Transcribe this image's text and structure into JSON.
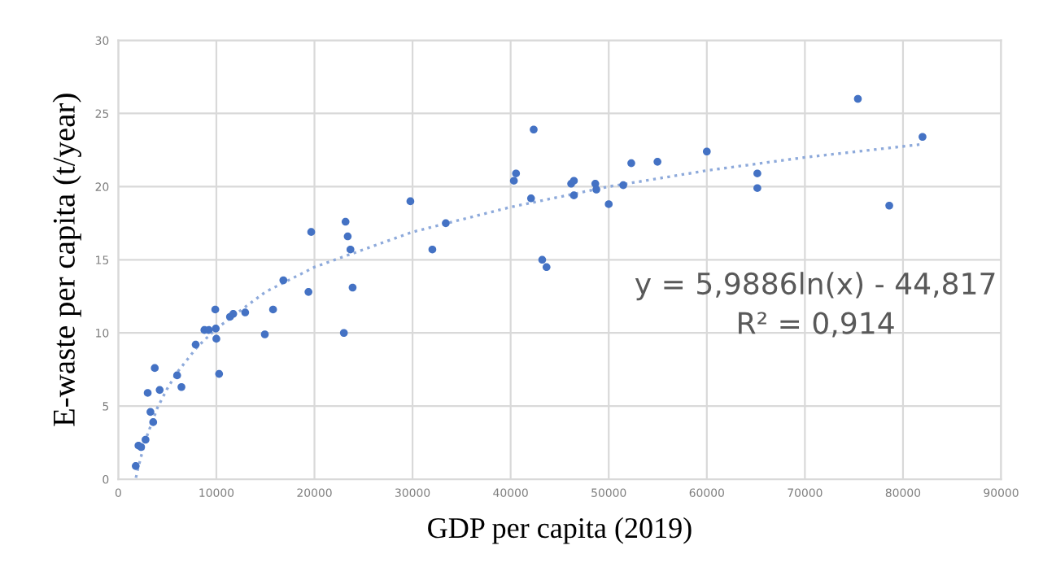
{
  "chart_data": {
    "type": "scatter",
    "xlabel": "GDP per capita (2019)",
    "ylabel": "E-waste per capita (t/year)",
    "xlim": [
      0,
      90000
    ],
    "ylim": [
      0,
      30
    ],
    "xticks": [
      0,
      10000,
      20000,
      30000,
      40000,
      50000,
      60000,
      70000,
      80000,
      90000
    ],
    "yticks": [
      0,
      5,
      10,
      15,
      20,
      25,
      30
    ],
    "grid": true,
    "annotations": [
      "y = 5,9886ln(x) - 44,817",
      "R² = 0,914"
    ],
    "series": [
      {
        "color": "#4472c4",
        "marker": "circle",
        "x": [
          1780,
          2060,
          2330,
          2780,
          3000,
          3280,
          3560,
          3720,
          4220,
          6000,
          6440,
          7890,
          8780,
          9220,
          9890,
          9940,
          10000,
          10280,
          11390,
          11720,
          12940,
          14940,
          15780,
          16830,
          19390,
          19670,
          23000,
          23170,
          23390,
          23670,
          23890,
          29780,
          32020,
          33390,
          40330,
          40550,
          42350,
          42080,
          43220,
          43660,
          46170,
          46450,
          46450,
          48630,
          48740,
          50000,
          51480,
          52300,
          54970,
          60000,
          65150,
          65150,
          75400,
          78600,
          81990
        ],
        "values": [
          0.9,
          2.3,
          2.2,
          2.7,
          5.9,
          4.6,
          3.9,
          7.6,
          6.1,
          7.1,
          6.3,
          9.2,
          10.2,
          10.2,
          11.6,
          10.3,
          9.6,
          7.2,
          11.1,
          11.3,
          11.4,
          9.9,
          11.6,
          13.6,
          12.8,
          16.9,
          10.0,
          17.6,
          16.6,
          15.7,
          13.1,
          19.0,
          15.7,
          17.5,
          20.4,
          20.9,
          23.9,
          19.2,
          15.0,
          14.5,
          20.2,
          20.4,
          19.4,
          20.2,
          19.8,
          18.8,
          20.1,
          21.6,
          21.7,
          22.4,
          20.9,
          19.9,
          26.0,
          18.7,
          23.4
        ]
      },
      {
        "type": "line",
        "color": "#8eaadb",
        "line_style": "dotted",
        "x": [
          1800,
          2000,
          2500,
          3000,
          4000,
          5000,
          6000,
          8000,
          10000,
          15000,
          20000,
          30000,
          40000,
          50000,
          60000,
          70000,
          82000
        ],
        "values": [
          0.1,
          0.7,
          2.0,
          3.1,
          4.9,
          6.2,
          7.3,
          9.0,
          10.3,
          12.8,
          14.5,
          16.9,
          18.6,
          20.0,
          21.1,
          22.0,
          22.9
        ]
      }
    ]
  }
}
